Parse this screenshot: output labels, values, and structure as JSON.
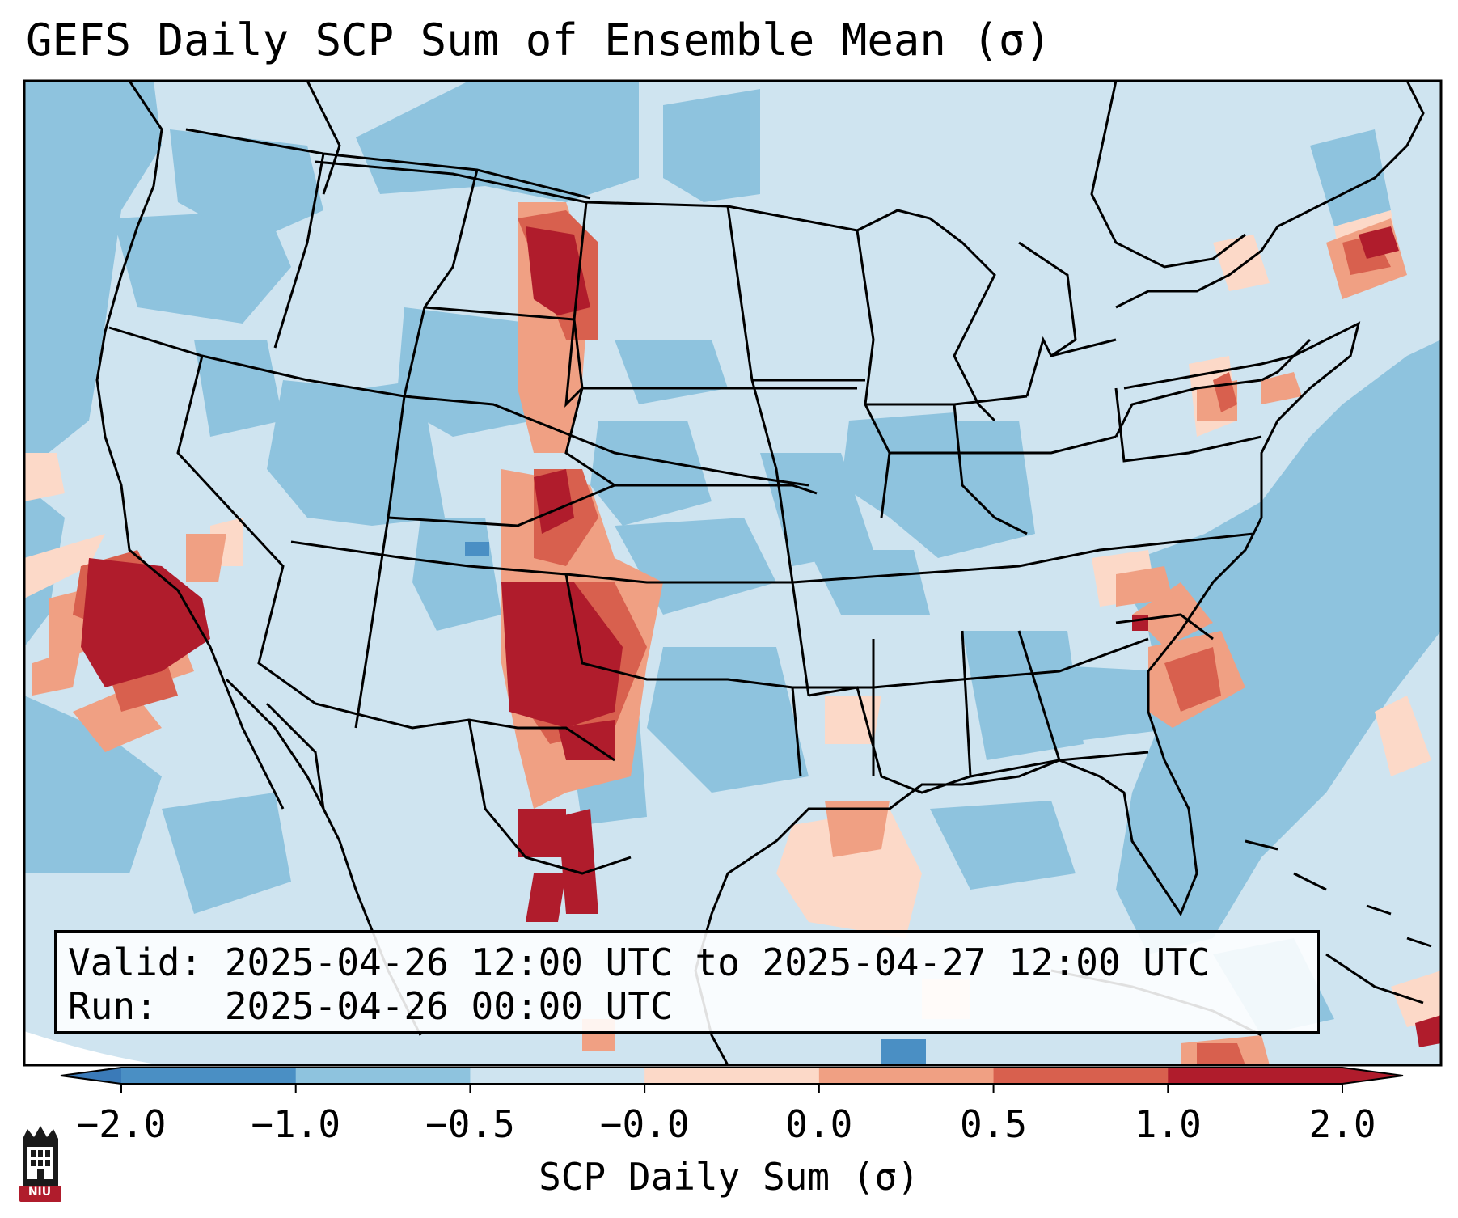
{
  "title": "GEFS Daily SCP Sum of Ensemble Mean (σ)",
  "info": {
    "valid": "Valid: 2025-04-26 12:00 UTC to 2025-04-27 12:00 UTC",
    "run": "Run:   2025-04-26 00:00 UTC"
  },
  "colorbar": {
    "label": "SCP Daily Sum (σ)",
    "ticks": [
      "−2.0",
      "−1.0",
      "−0.5",
      "−0.0",
      "0.0",
      "0.5",
      "1.0",
      "2.0"
    ],
    "colors": [
      "#4a8fc4",
      "#8ec3de",
      "#cfe4f0",
      "#fcd9c8",
      "#f0a083",
      "#d8604e",
      "#b01c2c"
    ],
    "extend_low_color": "#3a7ab8",
    "extend_high_color": "#b01c2c",
    "orientation": "horizontal",
    "extend": "both"
  },
  "map": {
    "projection": "Lambert Conformal",
    "region": "CONUS",
    "background_color": "#cfe4f0"
  },
  "logo": {
    "text": "NIU",
    "icon": "niu-logo-icon",
    "color": "#b01c2c"
  }
}
